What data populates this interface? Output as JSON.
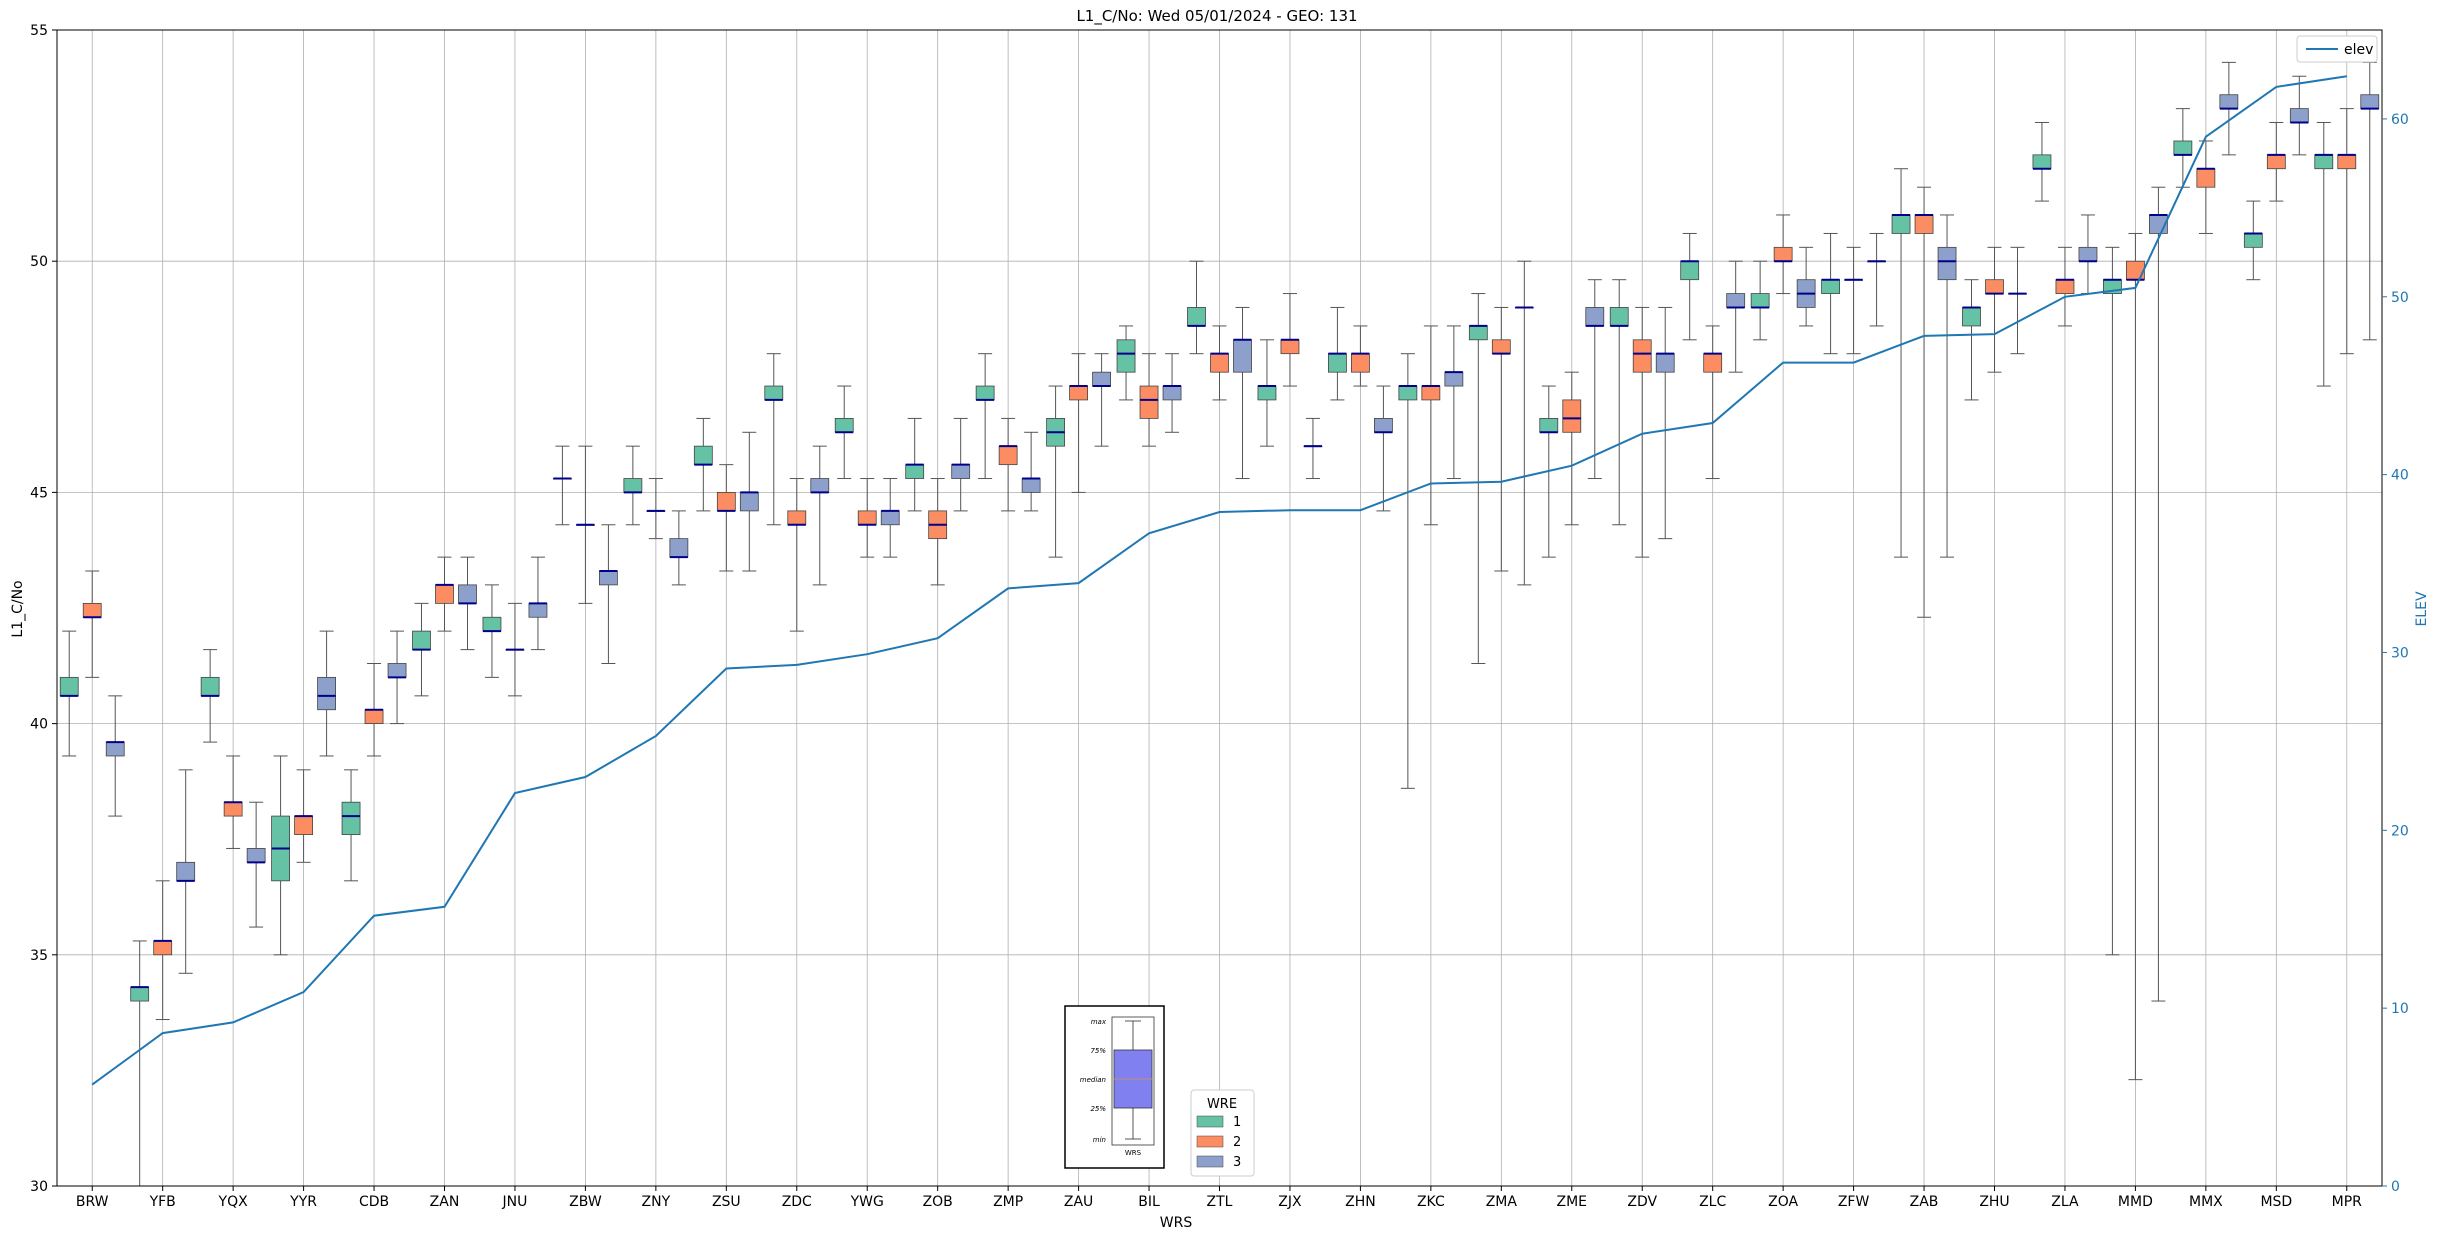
{
  "chart_data": {
    "type": "box",
    "title": "L1_C/No: Wed 05/01/2024 - GEO: 131",
    "xlabel": "WRS",
    "ylabel": "L1_C/No",
    "y2label": "ELEV",
    "ylim": [
      30,
      55
    ],
    "y2lim": [
      0,
      65
    ],
    "yticks": [
      30,
      35,
      40,
      45,
      50,
      55
    ],
    "y2ticks": [
      0,
      10,
      20,
      30,
      40,
      50,
      60
    ],
    "grid": true,
    "categories": [
      "BRW",
      "YFB",
      "YQX",
      "YYR",
      "CDB",
      "ZAN",
      "JNU",
      "ZBW",
      "ZNY",
      "ZSU",
      "ZDC",
      "YWG",
      "ZOB",
      "ZMP",
      "ZAU",
      "BIL",
      "ZTL",
      "ZJX",
      "ZHN",
      "ZKC",
      "ZMA",
      "ZME",
      "ZDV",
      "ZLC",
      "ZOA",
      "ZFW",
      "ZAB",
      "ZHU",
      "ZLA",
      "MMD",
      "MMX",
      "MSD",
      "MPR"
    ],
    "wre_legend": {
      "title": "WRE",
      "entries": [
        "1",
        "2",
        "3"
      ]
    },
    "colors": {
      "1": "#66c2a5",
      "2": "#fc8d62",
      "3": "#8da0cb",
      "median": "#00008b",
      "whisker": "#555555",
      "elev": "#1f77b4",
      "right_axis": "#1f77b4"
    },
    "elev_series": {
      "name": "elev",
      "values": [
        5.7,
        8.6,
        9.2,
        10.9,
        15.2,
        15.7,
        22.1,
        23.0,
        25.3,
        29.1,
        29.3,
        29.9,
        30.8,
        33.6,
        33.9,
        36.7,
        37.9,
        38.0,
        38.0,
        39.5,
        39.6,
        40.5,
        42.3,
        42.9,
        46.3,
        46.3,
        47.8,
        47.9,
        50.0,
        50.5,
        59.0,
        61.8,
        62.4
      ]
    },
    "boxes": [
      {
        "wrs": "BRW",
        "wre": 1,
        "min": 39.3,
        "q1": 40.6,
        "median": 40.6,
        "q3": 41.0,
        "max": 42.0
      },
      {
        "wrs": "BRW",
        "wre": 2,
        "min": 41.0,
        "q1": 42.3,
        "median": 42.3,
        "q3": 42.6,
        "max": 43.3
      },
      {
        "wrs": "BRW",
        "wre": 3,
        "min": 38.0,
        "q1": 39.3,
        "median": 39.6,
        "q3": 39.6,
        "max": 40.6
      },
      {
        "wrs": "YFB",
        "wre": 1,
        "min": 30.0,
        "q1": 34.0,
        "median": 34.3,
        "q3": 34.3,
        "max": 35.3
      },
      {
        "wrs": "YFB",
        "wre": 2,
        "min": 33.6,
        "q1": 35.0,
        "median": 35.3,
        "q3": 35.3,
        "max": 36.6
      },
      {
        "wrs": "YFB",
        "wre": 3,
        "min": 34.6,
        "q1": 36.6,
        "median": 36.6,
        "q3": 37.0,
        "max": 39.0
      },
      {
        "wrs": "YQX",
        "wre": 1,
        "min": 39.6,
        "q1": 40.6,
        "median": 40.6,
        "q3": 41.0,
        "max": 41.6
      },
      {
        "wrs": "YQX",
        "wre": 2,
        "min": 37.3,
        "q1": 38.0,
        "median": 38.3,
        "q3": 38.3,
        "max": 39.3
      },
      {
        "wrs": "YQX",
        "wre": 3,
        "min": 35.6,
        "q1": 37.0,
        "median": 37.0,
        "q3": 37.3,
        "max": 38.3
      },
      {
        "wrs": "YYR",
        "wre": 1,
        "min": 35.0,
        "q1": 36.6,
        "median": 37.3,
        "q3": 38.0,
        "max": 39.3
      },
      {
        "wrs": "YYR",
        "wre": 2,
        "min": 37.0,
        "q1": 37.6,
        "median": 38.0,
        "q3": 38.0,
        "max": 39.0
      },
      {
        "wrs": "YYR",
        "wre": 3,
        "min": 39.3,
        "q1": 40.3,
        "median": 40.6,
        "q3": 41.0,
        "max": 42.0
      },
      {
        "wrs": "CDB",
        "wre": 1,
        "min": 36.6,
        "q1": 37.6,
        "median": 38.0,
        "q3": 38.3,
        "max": 39.0
      },
      {
        "wrs": "CDB",
        "wre": 2,
        "min": 39.3,
        "q1": 40.0,
        "median": 40.3,
        "q3": 40.3,
        "max": 41.3
      },
      {
        "wrs": "CDB",
        "wre": 3,
        "min": 40.0,
        "q1": 41.0,
        "median": 41.0,
        "q3": 41.3,
        "max": 42.0
      },
      {
        "wrs": "ZAN",
        "wre": 1,
        "min": 40.6,
        "q1": 41.6,
        "median": 41.6,
        "q3": 42.0,
        "max": 42.6
      },
      {
        "wrs": "ZAN",
        "wre": 2,
        "min": 42.0,
        "q1": 42.6,
        "median": 43.0,
        "q3": 43.0,
        "max": 43.6
      },
      {
        "wrs": "ZAN",
        "wre": 3,
        "min": 41.6,
        "q1": 42.6,
        "median": 42.6,
        "q3": 43.0,
        "max": 43.6
      },
      {
        "wrs": "JNU",
        "wre": 1,
        "min": 41.0,
        "q1": 42.0,
        "median": 42.0,
        "q3": 42.3,
        "max": 43.0
      },
      {
        "wrs": "JNU",
        "wre": 2,
        "min": 40.6,
        "q1": 41.6,
        "median": 41.6,
        "q3": 41.6,
        "max": 42.6
      },
      {
        "wrs": "JNU",
        "wre": 3,
        "min": 41.6,
        "q1": 42.3,
        "median": 42.6,
        "q3": 42.6,
        "max": 43.6
      },
      {
        "wrs": "ZBW",
        "wre": 1,
        "min": 44.3,
        "q1": 45.3,
        "median": 45.3,
        "q3": 45.3,
        "max": 46.0
      },
      {
        "wrs": "ZBW",
        "wre": 2,
        "min": 42.6,
        "q1": 44.3,
        "median": 44.3,
        "q3": 44.3,
        "max": 46.0
      },
      {
        "wrs": "ZBW",
        "wre": 3,
        "min": 41.3,
        "q1": 43.0,
        "median": 43.3,
        "q3": 43.3,
        "max": 44.3
      },
      {
        "wrs": "ZNY",
        "wre": 1,
        "min": 44.3,
        "q1": 45.0,
        "median": 45.0,
        "q3": 45.3,
        "max": 46.0
      },
      {
        "wrs": "ZNY",
        "wre": 2,
        "min": 44.0,
        "q1": 44.6,
        "median": 44.6,
        "q3": 44.6,
        "max": 45.3
      },
      {
        "wrs": "ZNY",
        "wre": 3,
        "min": 43.0,
        "q1": 43.6,
        "median": 43.6,
        "q3": 44.0,
        "max": 44.6
      },
      {
        "wrs": "ZSU",
        "wre": 1,
        "min": 44.6,
        "q1": 45.6,
        "median": 45.6,
        "q3": 46.0,
        "max": 46.6
      },
      {
        "wrs": "ZSU",
        "wre": 2,
        "min": 43.3,
        "q1": 44.6,
        "median": 44.6,
        "q3": 45.0,
        "max": 45.6
      },
      {
        "wrs": "ZSU",
        "wre": 3,
        "min": 43.3,
        "q1": 44.6,
        "median": 45.0,
        "q3": 45.0,
        "max": 46.3
      },
      {
        "wrs": "ZDC",
        "wre": 1,
        "min": 44.3,
        "q1": 47.0,
        "median": 47.0,
        "q3": 47.3,
        "max": 48.0
      },
      {
        "wrs": "ZDC",
        "wre": 2,
        "min": 42.0,
        "q1": 44.3,
        "median": 44.3,
        "q3": 44.6,
        "max": 45.3
      },
      {
        "wrs": "ZDC",
        "wre": 3,
        "min": 43.0,
        "q1": 45.0,
        "median": 45.0,
        "q3": 45.3,
        "max": 46.0
      },
      {
        "wrs": "YWG",
        "wre": 1,
        "min": 45.3,
        "q1": 46.3,
        "median": 46.3,
        "q3": 46.6,
        "max": 47.3
      },
      {
        "wrs": "YWG",
        "wre": 2,
        "min": 43.6,
        "q1": 44.3,
        "median": 44.3,
        "q3": 44.6,
        "max": 45.3
      },
      {
        "wrs": "YWG",
        "wre": 3,
        "min": 43.6,
        "q1": 44.3,
        "median": 44.6,
        "q3": 44.6,
        "max": 45.3
      },
      {
        "wrs": "ZOB",
        "wre": 1,
        "min": 44.6,
        "q1": 45.3,
        "median": 45.6,
        "q3": 45.6,
        "max": 46.6
      },
      {
        "wrs": "ZOB",
        "wre": 2,
        "min": 43.0,
        "q1": 44.0,
        "median": 44.3,
        "q3": 44.6,
        "max": 45.3
      },
      {
        "wrs": "ZOB",
        "wre": 3,
        "min": 44.6,
        "q1": 45.3,
        "median": 45.6,
        "q3": 45.6,
        "max": 46.6
      },
      {
        "wrs": "ZMP",
        "wre": 1,
        "min": 45.3,
        "q1": 47.0,
        "median": 47.0,
        "q3": 47.3,
        "max": 48.0
      },
      {
        "wrs": "ZMP",
        "wre": 2,
        "min": 44.6,
        "q1": 45.6,
        "median": 46.0,
        "q3": 46.0,
        "max": 46.6
      },
      {
        "wrs": "ZMP",
        "wre": 3,
        "min": 44.6,
        "q1": 45.0,
        "median": 45.3,
        "q3": 45.3,
        "max": 46.3
      },
      {
        "wrs": "ZAU",
        "wre": 1,
        "min": 43.6,
        "q1": 46.0,
        "median": 46.3,
        "q3": 46.6,
        "max": 47.3
      },
      {
        "wrs": "ZAU",
        "wre": 2,
        "min": 45.0,
        "q1": 47.0,
        "median": 47.3,
        "q3": 47.3,
        "max": 48.0
      },
      {
        "wrs": "ZAU",
        "wre": 3,
        "min": 46.0,
        "q1": 47.3,
        "median": 47.3,
        "q3": 47.6,
        "max": 48.0
      },
      {
        "wrs": "BIL",
        "wre": 1,
        "min": 47.0,
        "q1": 47.6,
        "median": 48.0,
        "q3": 48.3,
        "max": 48.6
      },
      {
        "wrs": "BIL",
        "wre": 2,
        "min": 46.0,
        "q1": 46.6,
        "median": 47.0,
        "q3": 47.3,
        "max": 48.0
      },
      {
        "wrs": "BIL",
        "wre": 3,
        "min": 46.3,
        "q1": 47.0,
        "median": 47.3,
        "q3": 47.3,
        "max": 48.0
      },
      {
        "wrs": "ZTL",
        "wre": 1,
        "min": 48.0,
        "q1": 48.6,
        "median": 48.6,
        "q3": 49.0,
        "max": 50.0
      },
      {
        "wrs": "ZTL",
        "wre": 2,
        "min": 47.0,
        "q1": 47.6,
        "median": 48.0,
        "q3": 48.0,
        "max": 48.6
      },
      {
        "wrs": "ZTL",
        "wre": 3,
        "min": 45.3,
        "q1": 47.6,
        "median": 48.3,
        "q3": 48.3,
        "max": 49.0
      },
      {
        "wrs": "ZJX",
        "wre": 1,
        "min": 46.0,
        "q1": 47.0,
        "median": 47.3,
        "q3": 47.3,
        "max": 48.3
      },
      {
        "wrs": "ZJX",
        "wre": 2,
        "min": 47.3,
        "q1": 48.0,
        "median": 48.3,
        "q3": 48.3,
        "max": 49.3
      },
      {
        "wrs": "ZJX",
        "wre": 3,
        "min": 45.3,
        "q1": 46.0,
        "median": 46.0,
        "q3": 46.0,
        "max": 46.6
      },
      {
        "wrs": "ZHN",
        "wre": 1,
        "min": 47.0,
        "q1": 47.6,
        "median": 48.0,
        "q3": 48.0,
        "max": 49.0
      },
      {
        "wrs": "ZHN",
        "wre": 2,
        "min": 47.3,
        "q1": 47.6,
        "median": 48.0,
        "q3": 48.0,
        "max": 48.6
      },
      {
        "wrs": "ZHN",
        "wre": 3,
        "min": 44.6,
        "q1": 46.3,
        "median": 46.3,
        "q3": 46.6,
        "max": 47.3
      },
      {
        "wrs": "ZKC",
        "wre": 1,
        "min": 38.6,
        "q1": 47.0,
        "median": 47.3,
        "q3": 47.3,
        "max": 48.0
      },
      {
        "wrs": "ZKC",
        "wre": 2,
        "min": 44.3,
        "q1": 47.0,
        "median": 47.3,
        "q3": 47.3,
        "max": 48.6
      },
      {
        "wrs": "ZKC",
        "wre": 3,
        "min": 45.3,
        "q1": 47.3,
        "median": 47.6,
        "q3": 47.6,
        "max": 48.6
      },
      {
        "wrs": "ZMA",
        "wre": 1,
        "min": 41.3,
        "q1": 48.3,
        "median": 48.6,
        "q3": 48.6,
        "max": 49.3
      },
      {
        "wrs": "ZMA",
        "wre": 2,
        "min": 43.3,
        "q1": 48.0,
        "median": 48.0,
        "q3": 48.3,
        "max": 49.0
      },
      {
        "wrs": "ZMA",
        "wre": 3,
        "min": 43.0,
        "q1": 49.0,
        "median": 49.0,
        "q3": 49.0,
        "max": 50.0
      },
      {
        "wrs": "ZME",
        "wre": 1,
        "min": 43.6,
        "q1": 46.3,
        "median": 46.3,
        "q3": 46.6,
        "max": 47.3
      },
      {
        "wrs": "ZME",
        "wre": 2,
        "min": 44.3,
        "q1": 46.3,
        "median": 46.6,
        "q3": 47.0,
        "max": 47.6
      },
      {
        "wrs": "ZME",
        "wre": 3,
        "min": 45.3,
        "q1": 48.6,
        "median": 48.6,
        "q3": 49.0,
        "max": 49.6
      },
      {
        "wrs": "ZDV",
        "wre": 1,
        "min": 44.3,
        "q1": 48.6,
        "median": 48.6,
        "q3": 49.0,
        "max": 49.6
      },
      {
        "wrs": "ZDV",
        "wre": 2,
        "min": 43.6,
        "q1": 47.6,
        "median": 48.0,
        "q3": 48.3,
        "max": 49.0
      },
      {
        "wrs": "ZDV",
        "wre": 3,
        "min": 44.0,
        "q1": 47.6,
        "median": 48.0,
        "q3": 48.0,
        "max": 49.0
      },
      {
        "wrs": "ZLC",
        "wre": 1,
        "min": 48.3,
        "q1": 49.6,
        "median": 50.0,
        "q3": 50.0,
        "max": 50.6
      },
      {
        "wrs": "ZLC",
        "wre": 2,
        "min": 45.3,
        "q1": 47.6,
        "median": 48.0,
        "q3": 48.0,
        "max": 48.6
      },
      {
        "wrs": "ZLC",
        "wre": 3,
        "min": 47.6,
        "q1": 49.0,
        "median": 49.0,
        "q3": 49.3,
        "max": 50.0
      },
      {
        "wrs": "ZOA",
        "wre": 1,
        "min": 48.3,
        "q1": 49.0,
        "median": 49.0,
        "q3": 49.3,
        "max": 50.0
      },
      {
        "wrs": "ZOA",
        "wre": 2,
        "min": 49.3,
        "q1": 50.0,
        "median": 50.0,
        "q3": 50.3,
        "max": 51.0
      },
      {
        "wrs": "ZOA",
        "wre": 3,
        "min": 48.6,
        "q1": 49.0,
        "median": 49.3,
        "q3": 49.6,
        "max": 50.3
      },
      {
        "wrs": "ZFW",
        "wre": 1,
        "min": 48.0,
        "q1": 49.3,
        "median": 49.6,
        "q3": 49.6,
        "max": 50.6
      },
      {
        "wrs": "ZFW",
        "wre": 2,
        "min": 48.0,
        "q1": 49.6,
        "median": 49.6,
        "q3": 49.6,
        "max": 50.3
      },
      {
        "wrs": "ZFW",
        "wre": 3,
        "min": 48.6,
        "q1": 50.0,
        "median": 50.0,
        "q3": 50.0,
        "max": 50.6
      },
      {
        "wrs": "ZAB",
        "wre": 1,
        "min": 43.6,
        "q1": 50.6,
        "median": 51.0,
        "q3": 51.0,
        "max": 52.0
      },
      {
        "wrs": "ZAB",
        "wre": 2,
        "min": 42.3,
        "q1": 50.6,
        "median": 51.0,
        "q3": 51.0,
        "max": 51.6
      },
      {
        "wrs": "ZAB",
        "wre": 3,
        "min": 43.6,
        "q1": 49.6,
        "median": 50.0,
        "q3": 50.3,
        "max": 51.0
      },
      {
        "wrs": "ZHU",
        "wre": 1,
        "min": 47.0,
        "q1": 48.6,
        "median": 49.0,
        "q3": 49.0,
        "max": 49.6
      },
      {
        "wrs": "ZHU",
        "wre": 2,
        "min": 47.6,
        "q1": 49.3,
        "median": 49.3,
        "q3": 49.6,
        "max": 50.3
      },
      {
        "wrs": "ZHU",
        "wre": 3,
        "min": 48.0,
        "q1": 49.3,
        "median": 49.3,
        "q3": 49.3,
        "max": 50.3
      },
      {
        "wrs": "ZLA",
        "wre": 1,
        "min": 51.3,
        "q1": 52.0,
        "median": 52.0,
        "q3": 52.3,
        "max": 53.0
      },
      {
        "wrs": "ZLA",
        "wre": 2,
        "min": 48.6,
        "q1": 49.3,
        "median": 49.6,
        "q3": 49.6,
        "max": 50.3
      },
      {
        "wrs": "ZLA",
        "wre": 3,
        "min": 49.3,
        "q1": 50.0,
        "median": 50.0,
        "q3": 50.3,
        "max": 51.0
      },
      {
        "wrs": "MMD",
        "wre": 1,
        "min": 35.0,
        "q1": 49.3,
        "median": 49.6,
        "q3": 49.6,
        "max": 50.3
      },
      {
        "wrs": "MMD",
        "wre": 2,
        "min": 32.3,
        "q1": 49.6,
        "median": 49.6,
        "q3": 50.0,
        "max": 50.6
      },
      {
        "wrs": "MMD",
        "wre": 3,
        "min": 34.0,
        "q1": 50.6,
        "median": 51.0,
        "q3": 51.0,
        "max": 51.6
      },
      {
        "wrs": "MMX",
        "wre": 1,
        "min": 51.6,
        "q1": 52.3,
        "median": 52.3,
        "q3": 52.6,
        "max": 53.3
      },
      {
        "wrs": "MMX",
        "wre": 2,
        "min": 50.6,
        "q1": 51.6,
        "median": 52.0,
        "q3": 52.0,
        "max": 52.6
      },
      {
        "wrs": "MMX",
        "wre": 3,
        "min": 52.3,
        "q1": 53.3,
        "median": 53.3,
        "q3": 53.6,
        "max": 54.3
      },
      {
        "wrs": "MSD",
        "wre": 1,
        "min": 49.6,
        "q1": 50.3,
        "median": 50.6,
        "q3": 50.6,
        "max": 51.3
      },
      {
        "wrs": "MSD",
        "wre": 2,
        "min": 51.3,
        "q1": 52.0,
        "median": 52.3,
        "q3": 52.3,
        "max": 53.0
      },
      {
        "wrs": "MSD",
        "wre": 3,
        "min": 52.3,
        "q1": 53.0,
        "median": 53.0,
        "q3": 53.3,
        "max": 54.0
      },
      {
        "wrs": "MPR",
        "wre": 1,
        "min": 47.3,
        "q1": 52.0,
        "median": 52.3,
        "q3": 52.3,
        "max": 53.0
      },
      {
        "wrs": "MPR",
        "wre": 2,
        "min": 48.0,
        "q1": 52.0,
        "median": 52.3,
        "q3": 52.3,
        "max": 53.3
      },
      {
        "wrs": "MPR",
        "wre": 3,
        "min": 48.3,
        "q1": 53.3,
        "median": 53.3,
        "q3": 53.6,
        "max": 54.3
      }
    ],
    "inset_key": {
      "labels": [
        "max",
        "75%",
        "median",
        "25%",
        "min"
      ],
      "xlabel": "WRS"
    }
  }
}
